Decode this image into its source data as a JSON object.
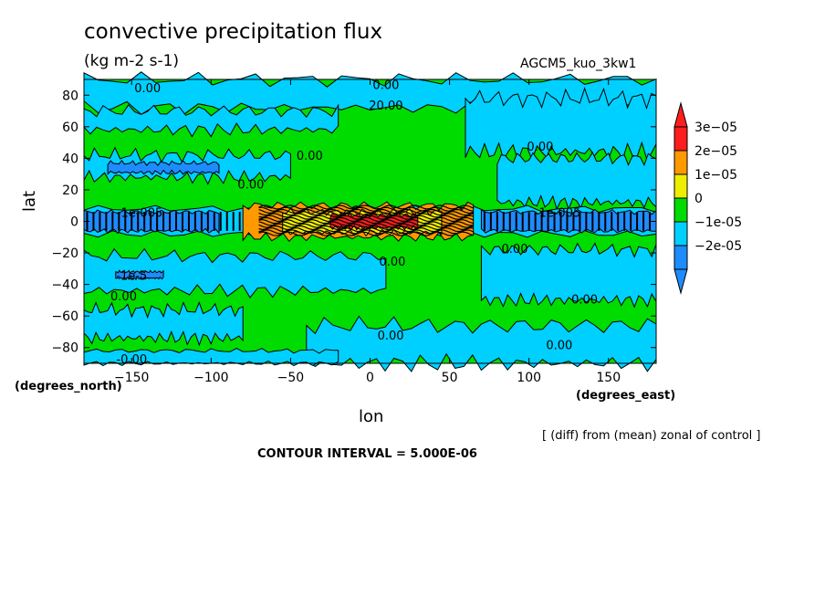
{
  "title": "convective precipitation flux",
  "units": "(kg m-2 s-1)",
  "run_name": "AGCM5_kuo_3kw1",
  "xlabel_text": "lon",
  "ylabel_text": "lat",
  "x_units": "(degrees_east)",
  "y_units": "(degrees_north)",
  "diff_note": "[ (diff) from (mean) zonal of control ]",
  "contour_note": "CONTOUR INTERVAL = 5.000E-06",
  "colors": {
    "level_colors": [
      "#1e8cff",
      "#00d0ff",
      "#00dc00",
      "#eeee00",
      "#ff9900",
      "#ff1e1e"
    ],
    "black": "#000000"
  },
  "chart_data": {
    "type": "heatmap",
    "title": "convective precipitation flux",
    "subtitle": "(kg m-2 s-1)",
    "xlabel": "lon",
    "ylabel": "lat",
    "xlim": [
      -180,
      180
    ],
    "ylim": [
      -90,
      90
    ],
    "x_ticks": [
      -150,
      -100,
      -50,
      0,
      50,
      100,
      150
    ],
    "y_ticks": [
      80,
      60,
      40,
      20,
      0,
      -20,
      -40,
      -60,
      -80
    ],
    "colorbar": {
      "levels": [
        "3e-05",
        "2e-05",
        "1e-05",
        "0",
        "-1e-05",
        "-2e-05"
      ],
      "extend": "both"
    },
    "contour_interval": 5e-06,
    "contour_labels": [
      {
        "text": "0.00",
        "lon": -140,
        "lat": 84
      },
      {
        "text": "0.00",
        "lon": 10,
        "lat": 86
      },
      {
        "text": "20.00",
        "lon": 10,
        "lat": 73
      },
      {
        "text": "0.00",
        "lon": 107,
        "lat": 47
      },
      {
        "text": "0.00",
        "lon": -38,
        "lat": 41
      },
      {
        "text": "0.00",
        "lon": -75,
        "lat": 23
      },
      {
        "text": "-1e-005",
        "lon": -145,
        "lat": 5
      },
      {
        "text": "-1e-005",
        "lon": 118,
        "lat": 5
      },
      {
        "text": "0.00",
        "lon": 91,
        "lat": -18
      },
      {
        "text": "0.00",
        "lon": 14,
        "lat": -26
      },
      {
        "text": "-1e-5",
        "lon": -150,
        "lat": -35
      },
      {
        "text": "0.00",
        "lon": -155,
        "lat": -48
      },
      {
        "text": "0.00",
        "lon": 135,
        "lat": -50
      },
      {
        "text": "0.00",
        "lon": 13,
        "lat": -73
      },
      {
        "text": "0.00",
        "lon": 119,
        "lat": -79
      },
      {
        "text": "-0.00",
        "lon": -150,
        "lat": -88
      }
    ]
  }
}
